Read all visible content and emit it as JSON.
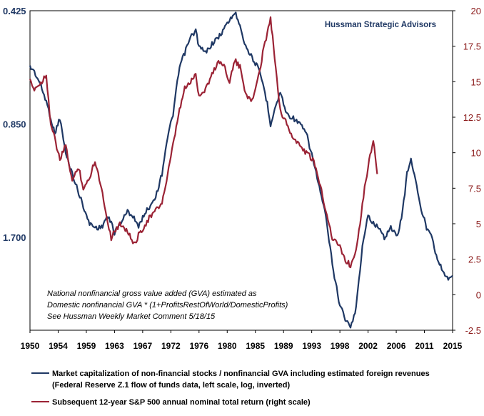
{
  "chart_data": {
    "type": "line",
    "brand": "Hussman Strategic Advisors",
    "annotation": [
      "National nonfinancial gross value added (GVA) estimated as",
      "Domestic nonfinancial GVA  * (1+ProfitsRestOfWorld/DomesticProfits)",
      "See Hussman Weekly Market Comment 5/18/15"
    ],
    "x_ticks": [
      "1950",
      "1954",
      "1959",
      "1963",
      "1967",
      "1972",
      "1976",
      "1980",
      "1985",
      "1989",
      "1993",
      "1998",
      "2002",
      "2006",
      "2011",
      "2015"
    ],
    "x_range": [
      1950,
      2015
    ],
    "left_axis": {
      "scale": "log-inverted",
      "ticks": [
        "0.425",
        "0.850",
        "1.700"
      ],
      "range": [
        0.425,
        3.0
      ]
    },
    "right_axis": {
      "scale": "linear",
      "ticks": [
        "20",
        "17.5",
        "15",
        "12.5",
        "10",
        "7.5",
        "5",
        "2.5",
        "0",
        "-2.5"
      ],
      "range": [
        -2.5,
        20
      ]
    },
    "series": [
      {
        "name": "Market capitalization of non-financial stocks / nonfinancial GVA including estimated foreign revenues (Federal Reserve Z.1 flow of funds data, left scale, log, inverted)",
        "legend_lines": [
          "Market capitalization of non-financial stocks / nonfinancial GVA including estimated foreign revenues",
          "(Federal Reserve Z.1 flow of funds data, left scale, log, inverted)"
        ],
        "axis": "left",
        "color": "#1f3864",
        "x": [
          1950.0,
          1950.5,
          1951.5,
          1952.5,
          1953.2,
          1953.8,
          1954.6,
          1955.5,
          1956.5,
          1957.5,
          1958.2,
          1959.0,
          1960.0,
          1961.0,
          1961.8,
          1962.5,
          1963.0,
          1964.0,
          1965.0,
          1966.0,
          1966.7,
          1967.5,
          1968.5,
          1969.5,
          1970.3,
          1971.0,
          1972.0,
          1973.0,
          1973.8,
          1974.7,
          1975.5,
          1976.0,
          1977.0,
          1978.0,
          1979.0,
          1980.0,
          1980.7,
          1981.5,
          1982.3,
          1983.0,
          1984.0,
          1985.0,
          1985.8,
          1986.5,
          1987.0,
          1987.8,
          1988.5,
          1989.5,
          1990.5,
          1991.5,
          1992.5,
          1993.5,
          1994.5,
          1995.5,
          1996.5,
          1997.5,
          1998.5,
          1999.3,
          2000.0,
          2000.6,
          2001.3,
          2002.0,
          2002.8,
          2003.5,
          2004.5,
          2005.5,
          2006.5,
          2007.3,
          2008.0,
          2008.6,
          2009.3,
          2010.0,
          2011.0,
          2011.7,
          2012.5,
          2013.5,
          2014.5,
          2015.0
        ],
        "y": [
          0.6,
          0.61,
          0.66,
          0.74,
          0.82,
          0.9,
          0.82,
          1.02,
          1.15,
          1.3,
          1.4,
          1.55,
          1.6,
          1.6,
          1.5,
          1.55,
          1.65,
          1.55,
          1.45,
          1.5,
          1.6,
          1.48,
          1.4,
          1.3,
          1.15,
          0.95,
          0.8,
          0.6,
          0.55,
          0.5,
          0.48,
          0.53,
          0.55,
          0.52,
          0.5,
          0.47,
          0.45,
          0.43,
          0.46,
          0.52,
          0.56,
          0.6,
          0.66,
          0.75,
          0.85,
          0.76,
          0.7,
          0.8,
          0.82,
          0.85,
          0.9,
          1.05,
          1.25,
          1.5,
          2.0,
          2.5,
          2.8,
          2.95,
          2.7,
          2.2,
          1.7,
          1.5,
          1.55,
          1.6,
          1.7,
          1.6,
          1.7,
          1.45,
          1.15,
          1.05,
          1.2,
          1.4,
          1.6,
          1.65,
          1.9,
          2.1,
          2.2,
          2.15
        ]
      },
      {
        "name": "Subsequent 12-year S&P 500 annual nominal total return (right scale)",
        "legend_lines": [
          "Subsequent 12-year S&P 500 annual nominal total return (right scale)"
        ],
        "axis": "right",
        "color": "#9b2335",
        "x": [
          1950.0,
          1950.5,
          1951.5,
          1952.5,
          1953.2,
          1953.8,
          1954.6,
          1955.5,
          1956.5,
          1957.5,
          1958.2,
          1959.0,
          1960.0,
          1961.0,
          1961.8,
          1962.5,
          1963.0,
          1964.0,
          1965.0,
          1966.0,
          1966.7,
          1967.5,
          1968.5,
          1969.5,
          1970.3,
          1971.0,
          1972.0,
          1973.0,
          1973.8,
          1974.7,
          1975.5,
          1976.0,
          1977.0,
          1978.0,
          1979.0,
          1980.0,
          1980.7,
          1981.5,
          1982.3,
          1983.0,
          1984.0,
          1985.0,
          1985.8,
          1986.5,
          1987.0,
          1987.8,
          1988.5,
          1989.5,
          1990.5,
          1991.5,
          1992.5,
          1993.5,
          1994.5,
          1995.5,
          1996.5,
          1997.5,
          1998.5,
          1999.3,
          2000.0,
          2000.6,
          2001.3,
          2002.0,
          2002.8,
          2003.4
        ],
        "y": [
          15.0,
          14.5,
          14.8,
          15.5,
          12.0,
          11.0,
          9.5,
          10.5,
          8.0,
          9.0,
          7.5,
          8.0,
          9.5,
          7.5,
          5.5,
          4.0,
          4.5,
          5.0,
          4.5,
          3.5,
          4.2,
          4.8,
          5.5,
          6.0,
          6.5,
          8.0,
          10.5,
          13.0,
          14.5,
          15.0,
          15.5,
          14.0,
          14.5,
          15.5,
          16.5,
          16.0,
          15.0,
          16.5,
          16.0,
          14.5,
          13.5,
          15.0,
          17.0,
          18.5,
          19.5,
          16.0,
          13.0,
          12.0,
          11.0,
          10.5,
          10.0,
          9.5,
          8.0,
          6.0,
          4.0,
          3.5,
          2.5,
          2.0,
          3.0,
          4.5,
          7.0,
          9.0,
          11.0,
          8.5
        ]
      }
    ]
  }
}
